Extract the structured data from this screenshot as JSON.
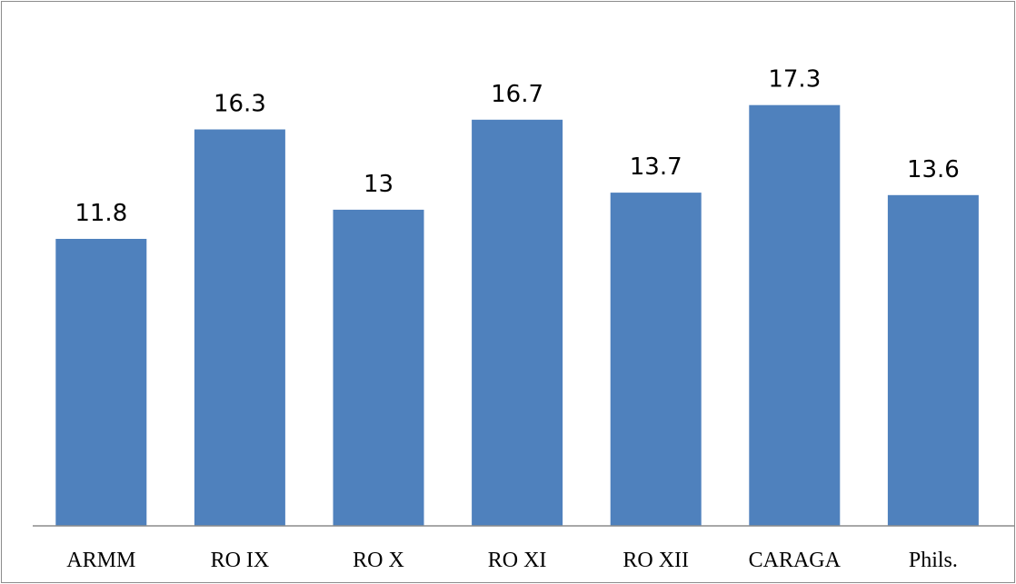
{
  "chart_data": {
    "type": "bar",
    "title": "",
    "xlabel": "",
    "ylabel": "",
    "categories": [
      "ARMM",
      "RO IX",
      "RO X",
      "RO XI",
      "RO XII",
      "CARAGA",
      "Phils."
    ],
    "values": [
      11.8,
      16.3,
      13,
      16.7,
      13.7,
      17.3,
      13.6
    ],
    "data_labels": [
      "11.8",
      "16.3",
      "13",
      "16.7",
      "13.7",
      "17.3",
      "13.6"
    ],
    "ylim": [
      0,
      20
    ],
    "grid": false,
    "legend": "none",
    "bar_color": "#4f81bd",
    "axis_color": "#8c8c8c"
  }
}
